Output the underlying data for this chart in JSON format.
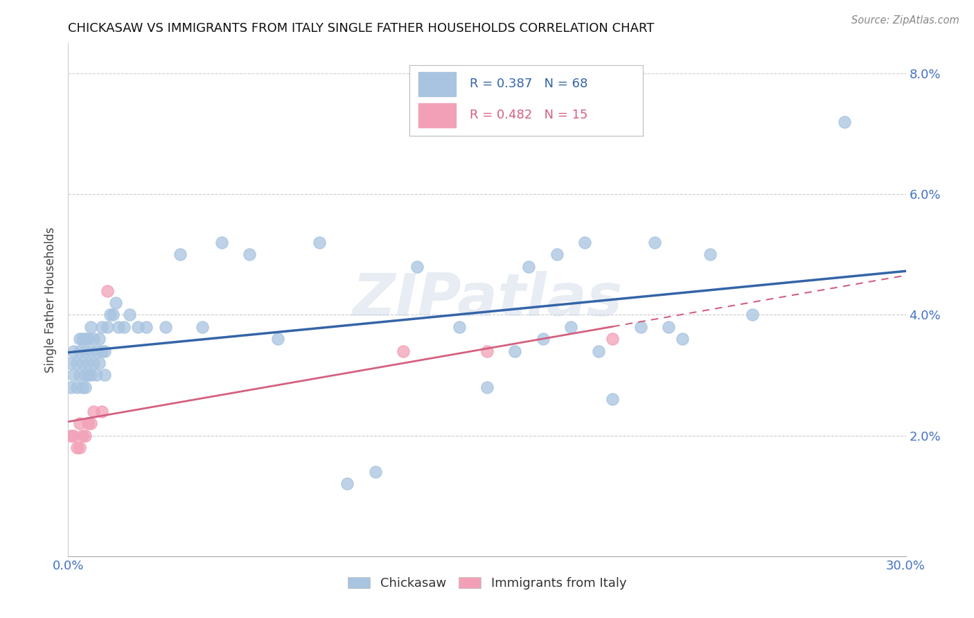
{
  "title": "CHICKASAW VS IMMIGRANTS FROM ITALY SINGLE FATHER HOUSEHOLDS CORRELATION CHART",
  "source": "Source: ZipAtlas.com",
  "ylabel": "Single Father Households",
  "xlim": [
    0.0,
    0.3
  ],
  "ylim": [
    0.0,
    0.085
  ],
  "xticks": [
    0.0,
    0.05,
    0.1,
    0.15,
    0.2,
    0.25,
    0.3
  ],
  "xticklabels": [
    "0.0%",
    "",
    "",
    "",
    "",
    "",
    "30.0%"
  ],
  "yticks": [
    0.0,
    0.02,
    0.04,
    0.06,
    0.08
  ],
  "yticklabels": [
    "",
    "2.0%",
    "4.0%",
    "6.0%",
    "8.0%"
  ],
  "chickasaw_color": "#a8c4e0",
  "italy_color": "#f2a0b8",
  "trendline_chickasaw_color": "#3464a8",
  "trendline_italy_color": "#d46080",
  "watermark": "ZIPatlas",
  "R_chickasaw": 0.387,
  "N_chickasaw": 68,
  "R_italy": 0.482,
  "N_italy": 15,
  "chickasaw_x": [
    0.001,
    0.001,
    0.002,
    0.002,
    0.003,
    0.003,
    0.004,
    0.004,
    0.004,
    0.005,
    0.005,
    0.005,
    0.006,
    0.006,
    0.006,
    0.006,
    0.007,
    0.007,
    0.007,
    0.008,
    0.008,
    0.008,
    0.009,
    0.009,
    0.01,
    0.01,
    0.011,
    0.011,
    0.012,
    0.012,
    0.013,
    0.013,
    0.014,
    0.015,
    0.016,
    0.017,
    0.018,
    0.02,
    0.022,
    0.025,
    0.028,
    0.035,
    0.04,
    0.048,
    0.055,
    0.065,
    0.075,
    0.09,
    0.1,
    0.11,
    0.125,
    0.14,
    0.15,
    0.16,
    0.165,
    0.17,
    0.175,
    0.18,
    0.185,
    0.19,
    0.195,
    0.205,
    0.21,
    0.215,
    0.22,
    0.23,
    0.245,
    0.278
  ],
  "chickasaw_y": [
    0.028,
    0.032,
    0.03,
    0.034,
    0.028,
    0.032,
    0.03,
    0.034,
    0.036,
    0.028,
    0.032,
    0.036,
    0.028,
    0.03,
    0.034,
    0.036,
    0.03,
    0.032,
    0.036,
    0.03,
    0.034,
    0.038,
    0.032,
    0.036,
    0.03,
    0.034,
    0.032,
    0.036,
    0.034,
    0.038,
    0.03,
    0.034,
    0.038,
    0.04,
    0.04,
    0.042,
    0.038,
    0.038,
    0.04,
    0.038,
    0.038,
    0.038,
    0.05,
    0.038,
    0.052,
    0.05,
    0.036,
    0.052,
    0.012,
    0.014,
    0.048,
    0.038,
    0.028,
    0.034,
    0.048,
    0.036,
    0.05,
    0.038,
    0.052,
    0.034,
    0.026,
    0.038,
    0.052,
    0.038,
    0.036,
    0.05,
    0.04,
    0.072
  ],
  "italy_x": [
    0.001,
    0.002,
    0.003,
    0.004,
    0.004,
    0.005,
    0.006,
    0.007,
    0.008,
    0.009,
    0.012,
    0.014,
    0.12,
    0.15,
    0.195
  ],
  "italy_y": [
    0.02,
    0.02,
    0.018,
    0.018,
    0.022,
    0.02,
    0.02,
    0.022,
    0.022,
    0.024,
    0.024,
    0.044,
    0.034,
    0.034,
    0.036
  ]
}
